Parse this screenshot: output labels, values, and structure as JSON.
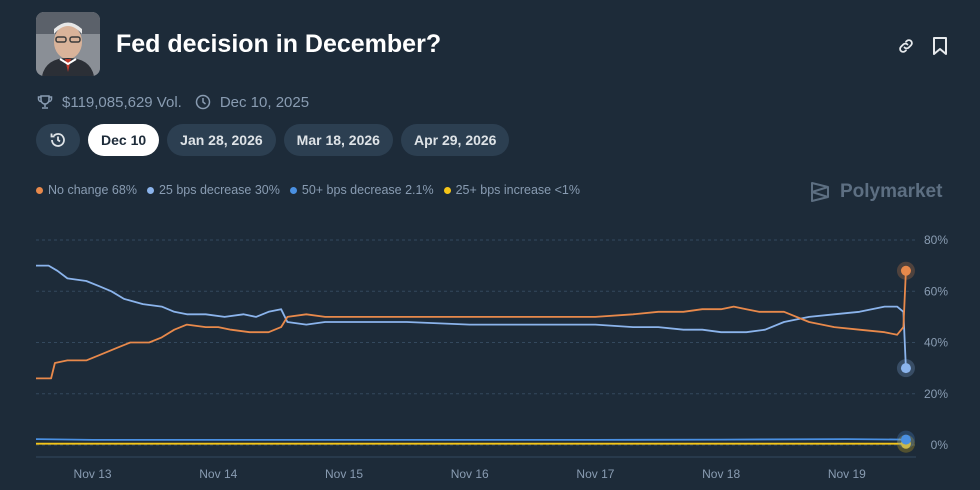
{
  "header": {
    "title": "Fed decision in December?",
    "avatar_icon": "portrait-photo",
    "link_icon": "link-icon",
    "bookmark_icon": "bookmark-icon"
  },
  "meta": {
    "volume": "$119,085,629 Vol.",
    "date": "Dec 10, 2025"
  },
  "tabs": [
    {
      "label": "Dec 10",
      "active": true
    },
    {
      "label": "Jan 28, 2026",
      "active": false
    },
    {
      "label": "Mar 18, 2026",
      "active": false
    },
    {
      "label": "Apr 29, 2026",
      "active": false
    }
  ],
  "brand": "Polymarket",
  "colors": {
    "background": "#1d2b39",
    "no_change": "#e8894b",
    "bps25_decrease": "#8bb4ec",
    "bps50_decrease": "#4a90e2",
    "bps25_increase": "#f5c518"
  },
  "chart_data": {
    "type": "line",
    "ylim": [
      0,
      80
    ],
    "y_ticks": [
      "80%",
      "60%",
      "40%",
      "20%",
      "0%"
    ],
    "x_ticks": [
      "Nov 13",
      "Nov 14",
      "Nov 15",
      "Nov 16",
      "Nov 17",
      "Nov 18",
      "Nov 19"
    ],
    "xlim": [
      12.55,
      19.55
    ],
    "grid": "horizontal dashed",
    "legend": "top-left",
    "series": [
      {
        "name": "No change",
        "legend_label": "No change 68%",
        "color": "#e8894b",
        "current": 68,
        "x": [
          12.55,
          12.67,
          12.7,
          12.8,
          12.95,
          13.05,
          13.2,
          13.3,
          13.45,
          13.55,
          13.65,
          13.75,
          13.9,
          14.0,
          14.1,
          14.25,
          14.4,
          14.5,
          14.55,
          14.7,
          14.85,
          15.0,
          15.5,
          16.0,
          16.5,
          17.0,
          17.3,
          17.5,
          17.7,
          17.85,
          18.0,
          18.1,
          18.2,
          18.3,
          18.5,
          18.7,
          18.9,
          19.1,
          19.3,
          19.4,
          19.45,
          19.47
        ],
        "y": [
          26,
          26,
          32,
          33,
          33,
          35,
          38,
          40,
          40,
          42,
          45,
          47,
          46,
          46,
          45,
          44,
          44,
          46,
          50,
          51,
          50,
          50,
          50,
          50,
          50,
          50,
          51,
          52,
          52,
          53,
          53,
          54,
          53,
          52,
          52,
          48,
          46,
          45,
          44,
          43,
          46,
          68
        ]
      },
      {
        "name": "25 bps decrease",
        "legend_label": "25 bps decrease 30%",
        "color": "#8bb4ec",
        "current": 30,
        "x": [
          12.55,
          12.65,
          12.72,
          12.8,
          12.95,
          13.05,
          13.15,
          13.25,
          13.4,
          13.55,
          13.65,
          13.75,
          13.9,
          14.05,
          14.2,
          14.3,
          14.4,
          14.5,
          14.55,
          14.7,
          14.85,
          15.0,
          15.5,
          16.0,
          16.5,
          17.0,
          17.3,
          17.5,
          17.7,
          17.85,
          18.0,
          18.2,
          18.35,
          18.5,
          18.7,
          18.9,
          19.1,
          19.3,
          19.4,
          19.45,
          19.47
        ],
        "y": [
          70,
          70,
          68,
          65,
          64,
          62,
          60,
          57,
          55,
          54,
          52,
          51,
          51,
          50,
          51,
          50,
          52,
          53,
          48,
          47,
          48,
          48,
          48,
          47,
          47,
          47,
          46,
          46,
          45,
          45,
          44,
          44,
          45,
          48,
          50,
          51,
          52,
          54,
          54,
          52,
          30
        ]
      },
      {
        "name": "50+ bps decrease",
        "legend_label": "50+ bps decrease 2.1%",
        "color": "#4a90e2",
        "current": 2.1,
        "x": [
          12.55,
          13.0,
          14.0,
          15.0,
          16.0,
          17.0,
          18.0,
          19.0,
          19.47
        ],
        "y": [
          2.3,
          2.0,
          2.0,
          2.0,
          2.0,
          2.0,
          2.1,
          2.3,
          2.1
        ]
      },
      {
        "name": "25+ bps increase",
        "legend_label": "25+ bps increase <1%",
        "color": "#f5c518",
        "current": 0.5,
        "x": [
          12.55,
          19.47
        ],
        "y": [
          0.5,
          0.5
        ]
      }
    ]
  }
}
